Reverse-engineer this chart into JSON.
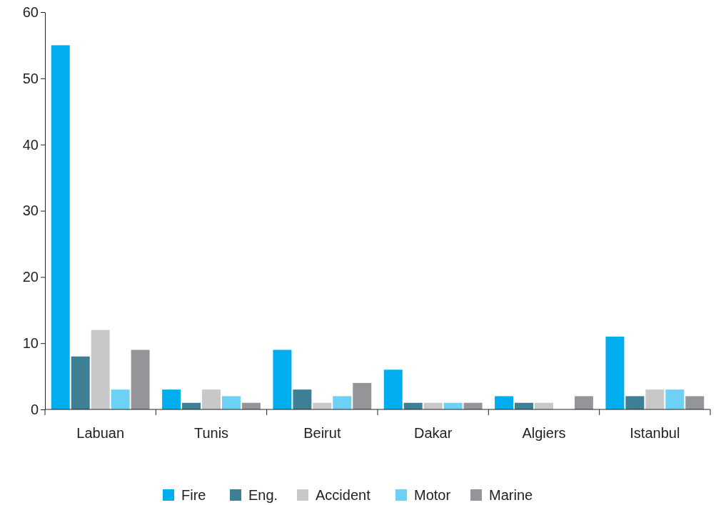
{
  "chart_data": {
    "type": "bar",
    "categories": [
      "Labuan",
      "Tunis",
      "Beirut",
      "Dakar",
      "Algiers",
      "Istanbul"
    ],
    "series": [
      {
        "name": "Fire",
        "color": "#00aeef",
        "values": [
          55,
          3,
          9,
          6,
          2,
          11
        ]
      },
      {
        "name": "Eng.",
        "color": "#3f7f96",
        "values": [
          8,
          1,
          3,
          1,
          1,
          2
        ]
      },
      {
        "name": "Accident",
        "color": "#c8c8ca",
        "values": [
          12,
          3,
          1,
          1,
          1,
          3
        ]
      },
      {
        "name": "Motor",
        "color": "#6dd0f5",
        "values": [
          3,
          2,
          2,
          1,
          0,
          3
        ]
      },
      {
        "name": "Marine",
        "color": "#939598",
        "values": [
          9,
          1,
          4,
          1,
          2,
          2
        ]
      }
    ],
    "ylim": [
      0,
      60
    ],
    "yticks": [
      0,
      10,
      20,
      30,
      40,
      50,
      60
    ],
    "grid": false,
    "legend": "bottom"
  }
}
